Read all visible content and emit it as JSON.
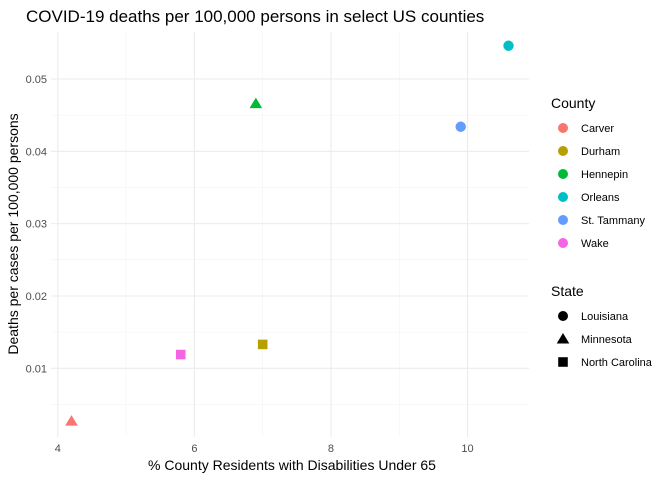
{
  "chart_data": {
    "type": "scatter",
    "title": "COVID-19 deaths per 100,000 persons in select US counties",
    "xlabel": "% County Residents with Disabilities Under 65",
    "ylabel": "Deaths per cases per 100,000 persons",
    "xlim": [
      3.9,
      10.9
    ],
    "ylim": [
      0.0005,
      0.0565
    ],
    "x_ticks": [
      4,
      6,
      8,
      10
    ],
    "x_tick_labels": [
      "4",
      "6",
      "8",
      "10"
    ],
    "y_ticks": [
      0.01,
      0.02,
      0.03,
      0.04,
      0.05
    ],
    "y_tick_labels": [
      "0.01",
      "0.02",
      "0.03",
      "0.04",
      "0.05"
    ],
    "grid": true,
    "legend_position": "right",
    "legends": [
      {
        "title": "County",
        "entries": [
          {
            "label": "Carver",
            "color": "#F8766D",
            "shape": "circle"
          },
          {
            "label": "Durham",
            "color": "#B79F00",
            "shape": "circle"
          },
          {
            "label": "Hennepin",
            "color": "#00BA38",
            "shape": "circle"
          },
          {
            "label": "Orleans",
            "color": "#00BFC4",
            "shape": "circle"
          },
          {
            "label": "St. Tammany",
            "color": "#619CFF",
            "shape": "circle"
          },
          {
            "label": "Wake",
            "color": "#F564E3",
            "shape": "circle"
          }
        ]
      },
      {
        "title": "State",
        "entries": [
          {
            "label": "Louisiana",
            "color": "#000000",
            "shape": "circle"
          },
          {
            "label": "Minnesota",
            "color": "#000000",
            "shape": "triangle"
          },
          {
            "label": "North Carolina",
            "color": "#000000",
            "shape": "square"
          }
        ]
      }
    ],
    "points": [
      {
        "county": "Carver",
        "state": "Minnesota",
        "x": 4.2,
        "y": 0.0027,
        "color": "#F8766D",
        "shape": "triangle"
      },
      {
        "county": "Durham",
        "state": "North Carolina",
        "x": 7.0,
        "y": 0.0133,
        "color": "#B79F00",
        "shape": "square"
      },
      {
        "county": "Hennepin",
        "state": "Minnesota",
        "x": 6.9,
        "y": 0.0466,
        "color": "#00BA38",
        "shape": "triangle"
      },
      {
        "county": "Orleans",
        "state": "Louisiana",
        "x": 10.6,
        "y": 0.0546,
        "color": "#00BFC4",
        "shape": "circle"
      },
      {
        "county": "St. Tammany",
        "state": "Louisiana",
        "x": 9.9,
        "y": 0.0434,
        "color": "#619CFF",
        "shape": "circle"
      },
      {
        "county": "Wake",
        "state": "North Carolina",
        "x": 5.8,
        "y": 0.0119,
        "color": "#F564E3",
        "shape": "square"
      }
    ]
  }
}
